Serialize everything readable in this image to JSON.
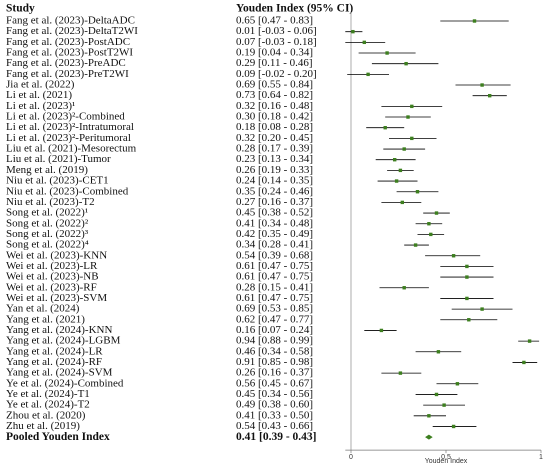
{
  "chart_data": {
    "type": "forest",
    "study_header": "Study",
    "estimate_header": "Youden Index (95% CI)",
    "xlabel": "Youden Index",
    "xlim": [
      -0.03,
      1
    ],
    "xticks": [
      0,
      0.5,
      1
    ],
    "marker_color": "#3d7f1f",
    "ci_color": "#000000",
    "categories": [
      "Fang et al. (2023)-DeltaADC",
      "Fang et al. (2023)-DeltaT2WI",
      "Fang et al. (2023)-PostADC",
      "Fang et al. (2023)-PostT2WI",
      "Fang et al. (2023)-PreADC",
      "Fang et al. (2023)-PreT2WI",
      "Jia et al. (2022)",
      "Li et al. (2021)",
      "Li et al. (2023)¹",
      "Li et al. (2023)²-Combined",
      "Li et al. (2023)²-Intratumoral",
      "Li et al. (2023)²-Peritumoral",
      "Liu et al. (2021)-Mesorectum",
      "Liu et al. (2021)-Tumor",
      "Meng et al. (2019)",
      "Niu et al. (2023)-CET1",
      "Niu et al. (2023)-Combined",
      "Niu et al. (2023)-T2",
      "Song et al. (2022)¹",
      "Song et al. (2022)²",
      "Song et al. (2022)³",
      "Song et al. (2022)⁴",
      "Wei et al. (2023)-KNN",
      "Wei et al. (2023)-LR",
      "Wei et al. (2023)-NB",
      "Wei et al. (2023)-RF",
      "Wei et al. (2023)-SVM",
      "Yan et al. (2024)",
      "Yang et al. (2021)",
      "Yang et al. (2024)-KNN",
      "Yang et al. (2024)-LGBM",
      "Yang et al. (2024)-LR",
      "Yang et al. (2024)-RF",
      "Yang et al. (2024)-SVM",
      "Ye et al. (2024)-Combined",
      "Ye et al. (2024)-T1",
      "Ye et al. (2024)-T2",
      "Zhou et al. (2020)",
      "Zhu et al. (2019)"
    ],
    "values": [
      0.65,
      0.01,
      0.07,
      0.19,
      0.29,
      0.09,
      0.69,
      0.73,
      0.32,
      0.3,
      0.18,
      0.32,
      0.28,
      0.23,
      0.26,
      0.24,
      0.35,
      0.27,
      0.45,
      0.41,
      0.42,
      0.34,
      0.54,
      0.61,
      0.61,
      0.28,
      0.61,
      0.69,
      0.62,
      0.16,
      0.94,
      0.46,
      0.91,
      0.26,
      0.56,
      0.45,
      0.49,
      0.41,
      0.54
    ],
    "lower": [
      0.47,
      -0.03,
      -0.03,
      0.04,
      0.11,
      -0.02,
      0.55,
      0.64,
      0.16,
      0.18,
      0.08,
      0.2,
      0.17,
      0.13,
      0.19,
      0.14,
      0.24,
      0.16,
      0.38,
      0.34,
      0.35,
      0.28,
      0.39,
      0.47,
      0.47,
      0.15,
      0.47,
      0.53,
      0.47,
      0.07,
      0.88,
      0.34,
      0.85,
      0.16,
      0.45,
      0.34,
      0.38,
      0.33,
      0.43
    ],
    "upper": [
      0.83,
      0.06,
      0.18,
      0.34,
      0.46,
      0.2,
      0.84,
      0.82,
      0.48,
      0.42,
      0.28,
      0.45,
      0.39,
      0.34,
      0.33,
      0.35,
      0.46,
      0.37,
      0.52,
      0.48,
      0.49,
      0.41,
      0.68,
      0.75,
      0.75,
      0.41,
      0.75,
      0.85,
      0.77,
      0.24,
      0.99,
      0.58,
      0.98,
      0.37,
      0.67,
      0.56,
      0.6,
      0.5,
      0.66
    ],
    "value_labels": [
      "0.65 [0.47 - 0.83]",
      "0.01 [-0.03 - 0.06]",
      "0.07 [-0.03 - 0.18]",
      "0.19 [0.04 - 0.34]",
      "0.29 [0.11 - 0.46]",
      "0.09 [-0.02 - 0.20]",
      "0.69 [0.55 - 0.84]",
      "0.73 [0.64 - 0.82]",
      "0.32 [0.16 - 0.48]",
      "0.30 [0.18 - 0.42]",
      "0.18 [0.08 - 0.28]",
      "0.32 [0.20 - 0.45]",
      "0.28 [0.17 - 0.39]",
      "0.23 [0.13 - 0.34]",
      "0.26 [0.19 - 0.33]",
      "0.24 [0.14 - 0.35]",
      "0.35 [0.24 - 0.46]",
      "0.27 [0.16 - 0.37]",
      "0.45 [0.38 - 0.52]",
      "0.41 [0.34 - 0.48]",
      "0.42 [0.35 - 0.49]",
      "0.34 [0.28 - 0.41]",
      "0.54 [0.39 - 0.68]",
      "0.61 [0.47 - 0.75]",
      "0.61 [0.47 - 0.75]",
      "0.28 [0.15 - 0.41]",
      "0.61 [0.47 - 0.75]",
      "0.69 [0.53 - 0.85]",
      "0.62 [0.47 - 0.77]",
      "0.16 [0.07 - 0.24]",
      "0.94 [0.88 - 0.99]",
      "0.46 [0.34 - 0.58]",
      "0.91 [0.85 - 0.98]",
      "0.26 [0.16 - 0.37]",
      "0.56 [0.45 - 0.67]",
      "0.45 [0.34 - 0.56]",
      "0.49 [0.38 - 0.60]",
      "0.41 [0.33 - 0.50]",
      "0.54 [0.43 - 0.66]"
    ],
    "pooled_name": "Pooled Youden Index",
    "pooled_value": 0.41,
    "pooled_lower": 0.39,
    "pooled_upper": 0.43,
    "pooled_value_label": "0.41 [0.39 - 0.43]"
  }
}
